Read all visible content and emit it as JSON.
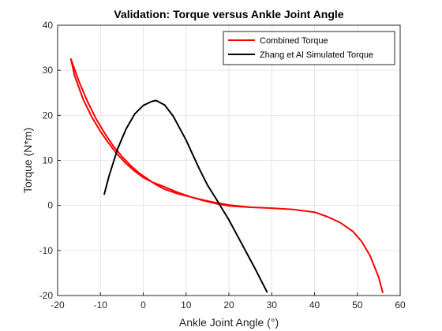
{
  "chart_data": {
    "type": "line",
    "title": "Validation: Torque versus Ankle Joint Angle",
    "xlabel": "Ankle Joint Angle (°)",
    "ylabel": "Torque (N*m)",
    "xlim": [
      -20,
      60
    ],
    "ylim": [
      -20,
      40
    ],
    "xticks": [
      "-20",
      "-10",
      "0",
      "10",
      "20",
      "30",
      "40",
      "50",
      "60"
    ],
    "yticks": [
      "-20",
      "-10",
      "0",
      "10",
      "20",
      "30",
      "40"
    ],
    "grid": true,
    "legend_position": "top-right",
    "series": [
      {
        "name": "Combined Torque",
        "color": "#ff0000",
        "x": [
          -16.9,
          -15,
          -13,
          -11,
          -9,
          -7,
          -5,
          -3,
          -1,
          1,
          3,
          5,
          8,
          11,
          14,
          17,
          20,
          25,
          30,
          35,
          40,
          43,
          46,
          49,
          51,
          53,
          55,
          55.9,
          55,
          53,
          51,
          49,
          46,
          43,
          40,
          35,
          30,
          25,
          20,
          17,
          14,
          11,
          8,
          5,
          2,
          0,
          -2,
          -4,
          -6,
          -8,
          -10,
          -12,
          -14,
          -16,
          -16.9
        ],
        "y": [
          32.5,
          27.5,
          23,
          19.2,
          16,
          13.2,
          10.9,
          8.9,
          7.2,
          5.9,
          4.6,
          3.6,
          2.6,
          1.9,
          1.2,
          0.6,
          0.1,
          -0.4,
          -0.6,
          -0.9,
          -1.5,
          -2.5,
          -3.8,
          -5.8,
          -8,
          -11.2,
          -16,
          -19.3,
          -16,
          -11.2,
          -8,
          -5.8,
          -3.8,
          -2.5,
          -1.5,
          -0.9,
          -0.6,
          -0.4,
          -0.1,
          0.4,
          1.1,
          1.9,
          2.9,
          4.1,
          5.2,
          6.2,
          7.6,
          9.3,
          11.3,
          13.7,
          16.4,
          19.6,
          23.5,
          28.7,
          32.5
        ]
      },
      {
        "name": "Zhang et Al Simulated Torque",
        "color": "#000000",
        "x": [
          -9.1,
          -8,
          -6,
          -4,
          -2,
          0,
          2,
          3,
          5,
          7,
          10,
          13,
          15,
          17,
          20,
          23,
          26,
          28.9
        ],
        "y": [
          2.5,
          6.5,
          12.5,
          17,
          20.3,
          22.2,
          23.1,
          23.3,
          22.3,
          19.8,
          14.5,
          8.3,
          4.5,
          1.5,
          -3.2,
          -8.5,
          -13.8,
          -19.2
        ]
      }
    ]
  }
}
